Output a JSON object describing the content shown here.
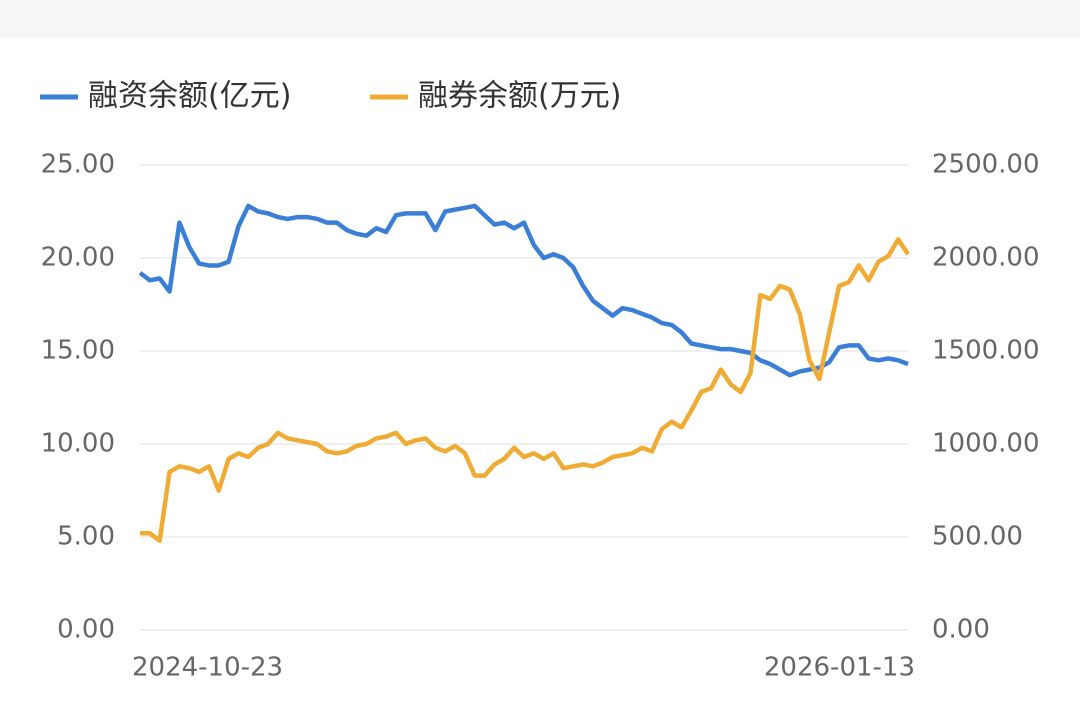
{
  "chart_data": {
    "type": "line",
    "categories": [
      "2024-10-23",
      null,
      null,
      null,
      null,
      null,
      null,
      null,
      null,
      null,
      null,
      null,
      null,
      null,
      null,
      null,
      null,
      null,
      null,
      null,
      null,
      null,
      null,
      null,
      null,
      null,
      null,
      null,
      null,
      null,
      null,
      null,
      null,
      null,
      null,
      null,
      null,
      null,
      null,
      null,
      null,
      null,
      null,
      null,
      null,
      null,
      null,
      null,
      null,
      null,
      null,
      null,
      null,
      null,
      null,
      null,
      null,
      null,
      null,
      null,
      null,
      null,
      null,
      null,
      null,
      null,
      null,
      null,
      null,
      null,
      null,
      null,
      null,
      null,
      null,
      null,
      null,
      null,
      "2026-01-13"
    ],
    "series": [
      {
        "name": "融资余额(亿元)",
        "color": "#3a7fd5",
        "values": [
          19.2,
          18.8,
          18.9,
          18.2,
          21.9,
          20.6,
          19.7,
          19.6,
          19.6,
          19.8,
          21.7,
          22.8,
          22.5,
          22.4,
          22.2,
          22.1,
          22.2,
          22.2,
          22.1,
          21.9,
          21.9,
          21.5,
          21.3,
          21.2,
          21.6,
          21.4,
          22.3,
          22.4,
          22.4,
          22.4,
          21.5,
          22.5,
          22.6,
          22.7,
          22.8,
          22.3,
          21.8,
          21.9,
          21.6,
          21.9,
          20.7,
          20.0,
          20.2,
          20.0,
          19.5,
          18.5,
          17.7,
          17.3,
          16.9,
          17.3,
          17.2,
          17.0,
          16.8,
          16.5,
          16.4,
          16.0,
          15.4,
          15.3,
          15.2,
          15.1,
          15.1,
          15.0,
          14.9,
          14.5,
          14.3,
          14.0,
          13.7,
          13.9,
          14.0,
          14.1,
          14.4,
          15.2,
          15.3,
          15.3,
          14.6,
          14.5,
          14.6,
          14.5,
          14.3
        ]
      },
      {
        "name": "融券余额(万元)",
        "color": "#f0ab34",
        "axis": "y2",
        "values": [
          520,
          520,
          480,
          850,
          880,
          870,
          850,
          880,
          750,
          920,
          950,
          930,
          980,
          1000,
          1060,
          1030,
          1020,
          1010,
          1000,
          960,
          950,
          960,
          990,
          1000,
          1030,
          1040,
          1060,
          1000,
          1020,
          1030,
          980,
          960,
          990,
          950,
          830,
          830,
          890,
          920,
          980,
          930,
          950,
          920,
          950,
          870,
          880,
          890,
          880,
          900,
          930,
          940,
          950,
          980,
          960,
          1080,
          1120,
          1090,
          1180,
          1280,
          1300,
          1400,
          1320,
          1280,
          1380,
          1800,
          1780,
          1850,
          1830,
          1700,
          1450,
          1350,
          1600,
          1850,
          1870,
          1960,
          1880,
          1980,
          2010,
          2100,
          2020
        ]
      }
    ],
    "ylim": [
      0,
      25
    ],
    "yticks": [
      {
        "value": 0,
        "label": "0.00"
      },
      {
        "value": 5,
        "label": "5.00"
      },
      {
        "value": 10,
        "label": "10.00"
      },
      {
        "value": 15,
        "label": "15.00"
      },
      {
        "value": 20,
        "label": "20.00"
      },
      {
        "value": 25,
        "label": "25.00"
      }
    ],
    "y2lim": [
      0,
      2500
    ],
    "y2ticks": [
      {
        "value": 0,
        "label": "0.00"
      },
      {
        "value": 500,
        "label": "500.00"
      },
      {
        "value": 1000,
        "label": "1000.00"
      },
      {
        "value": 1500,
        "label": "1500.00"
      },
      {
        "value": 2000,
        "label": "2000.00"
      },
      {
        "value": 2500,
        "label": "2500.00"
      }
    ],
    "grid": true,
    "legend": "top"
  }
}
